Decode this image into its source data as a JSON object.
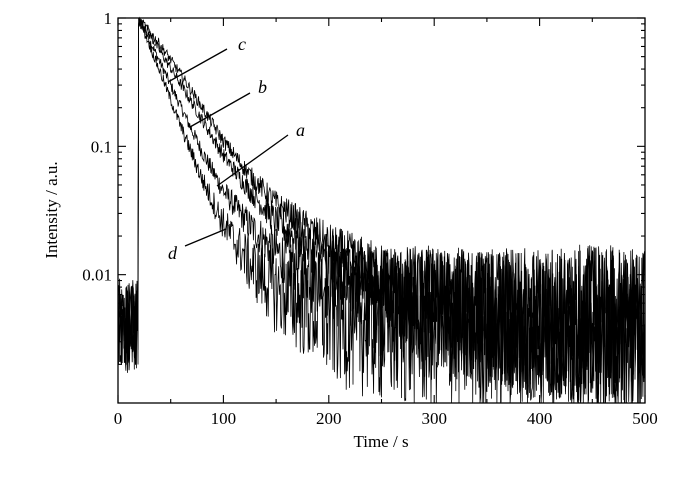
{
  "chart_data": {
    "type": "line",
    "xlabel": "Time / s",
    "ylabel": "Intensity / a.u.",
    "xlim": [
      0,
      500
    ],
    "ylim": [
      0.001,
      1.0
    ],
    "y_scale": "log",
    "grid": false,
    "xticks": [
      0,
      100,
      200,
      300,
      400,
      500
    ],
    "xtick_labels": [
      "0",
      "100",
      "200",
      "300",
      "400",
      "500"
    ],
    "yticks": [
      0.01,
      0.1,
      1
    ],
    "ytick_labels": [
      "0.01",
      "0.1",
      "1"
    ],
    "noise": {
      "baseline_before_excitation": 0.004,
      "noise_floor": 0.0036
    },
    "excitation_time": 20,
    "series": [
      {
        "name": "a",
        "x": [
          20,
          25,
          40,
          60,
          80,
          100,
          125,
          150,
          200,
          250,
          300,
          400,
          500
        ],
        "y": [
          0.95,
          0.82,
          0.45,
          0.2,
          0.09,
          0.045,
          0.024,
          0.015,
          0.0085,
          0.006,
          0.0048,
          0.0041,
          0.0038
        ]
      },
      {
        "name": "b",
        "x": [
          20,
          25,
          40,
          60,
          80,
          100,
          125,
          150,
          200,
          250,
          300,
          400,
          500
        ],
        "y": [
          0.95,
          0.86,
          0.55,
          0.3,
          0.16,
          0.085,
          0.045,
          0.026,
          0.0125,
          0.0075,
          0.0055,
          0.0042,
          0.0038
        ]
      },
      {
        "name": "c",
        "x": [
          20,
          25,
          40,
          60,
          80,
          100,
          125,
          150,
          200,
          250,
          300,
          400,
          500
        ],
        "y": [
          0.95,
          0.88,
          0.62,
          0.36,
          0.2,
          0.11,
          0.06,
          0.036,
          0.017,
          0.0095,
          0.0065,
          0.0045,
          0.0039
        ]
      },
      {
        "name": "d",
        "x": [
          20,
          25,
          40,
          60,
          80,
          100,
          125,
          150,
          200,
          250,
          300,
          400,
          500
        ],
        "y": [
          0.95,
          0.78,
          0.38,
          0.14,
          0.055,
          0.025,
          0.012,
          0.0075,
          0.0048,
          0.004,
          0.0038,
          0.0037,
          0.0036
        ]
      }
    ],
    "annotations": [
      {
        "text": "c",
        "series": "c",
        "at_x": 50,
        "at_y": 0.36
      },
      {
        "text": "b",
        "series": "b",
        "at_x": 75,
        "at_y": 0.13
      },
      {
        "text": "a",
        "series": "a",
        "at_x": 100,
        "at_y": 0.045
      },
      {
        "text": "d",
        "series": "d",
        "at_x": 95,
        "at_y": 0.025
      }
    ]
  }
}
